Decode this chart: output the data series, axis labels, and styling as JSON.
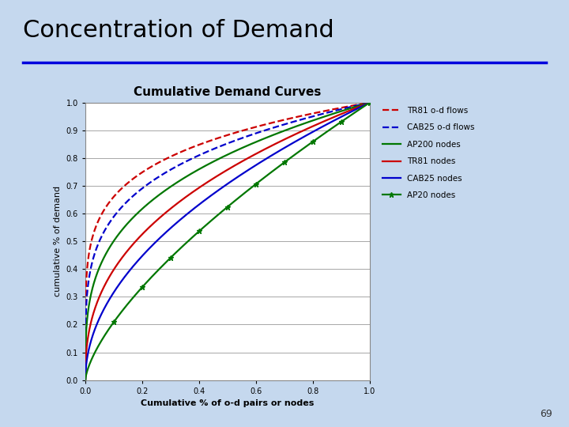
{
  "title_main": "Concentration of Demand",
  "title_sub": "Cumulative Demand Curves",
  "xlabel": "Cumulative % of o-d pairs or nodes",
  "ylabel": "cumulative % of demand",
  "bg_color": "#c5d8ee",
  "plot_bg_color": "#ffffff",
  "series": [
    {
      "label": "TR81 o-d flows",
      "color": "#cc0000",
      "linestyle": "dashed",
      "marker": null,
      "power": 0.18
    },
    {
      "label": "CAB25 o-d flows",
      "color": "#0000cc",
      "linestyle": "dashed",
      "marker": null,
      "power": 0.23
    },
    {
      "label": "AP200 nodes",
      "color": "#007700",
      "linestyle": "solid",
      "marker": null,
      "power": 0.3
    },
    {
      "label": "TR81 nodes",
      "color": "#cc0000",
      "linestyle": "solid",
      "marker": null,
      "power": 0.4
    },
    {
      "label": "CAB25 nodes",
      "color": "#0000cc",
      "linestyle": "solid",
      "marker": null,
      "power": 0.5
    },
    {
      "label": "AP20 nodes",
      "color": "#007700",
      "linestyle": "solid",
      "marker": "*",
      "power": 0.68
    }
  ],
  "xlim": [
    0,
    1
  ],
  "ylim": [
    0,
    1
  ],
  "xticks": [
    0,
    0.2,
    0.4,
    0.6,
    0.8,
    1
  ],
  "yticks": [
    0,
    0.1,
    0.2,
    0.3,
    0.4,
    0.5,
    0.6,
    0.7,
    0.8,
    0.9,
    1
  ],
  "blue_line_color": "#0000dd",
  "slide_title_color": "#000000",
  "page_number": "69",
  "title_fontsize": 22,
  "subtitle_fontsize": 11,
  "axis_label_fontsize": 8,
  "tick_fontsize": 7,
  "legend_fontsize": 7.5
}
